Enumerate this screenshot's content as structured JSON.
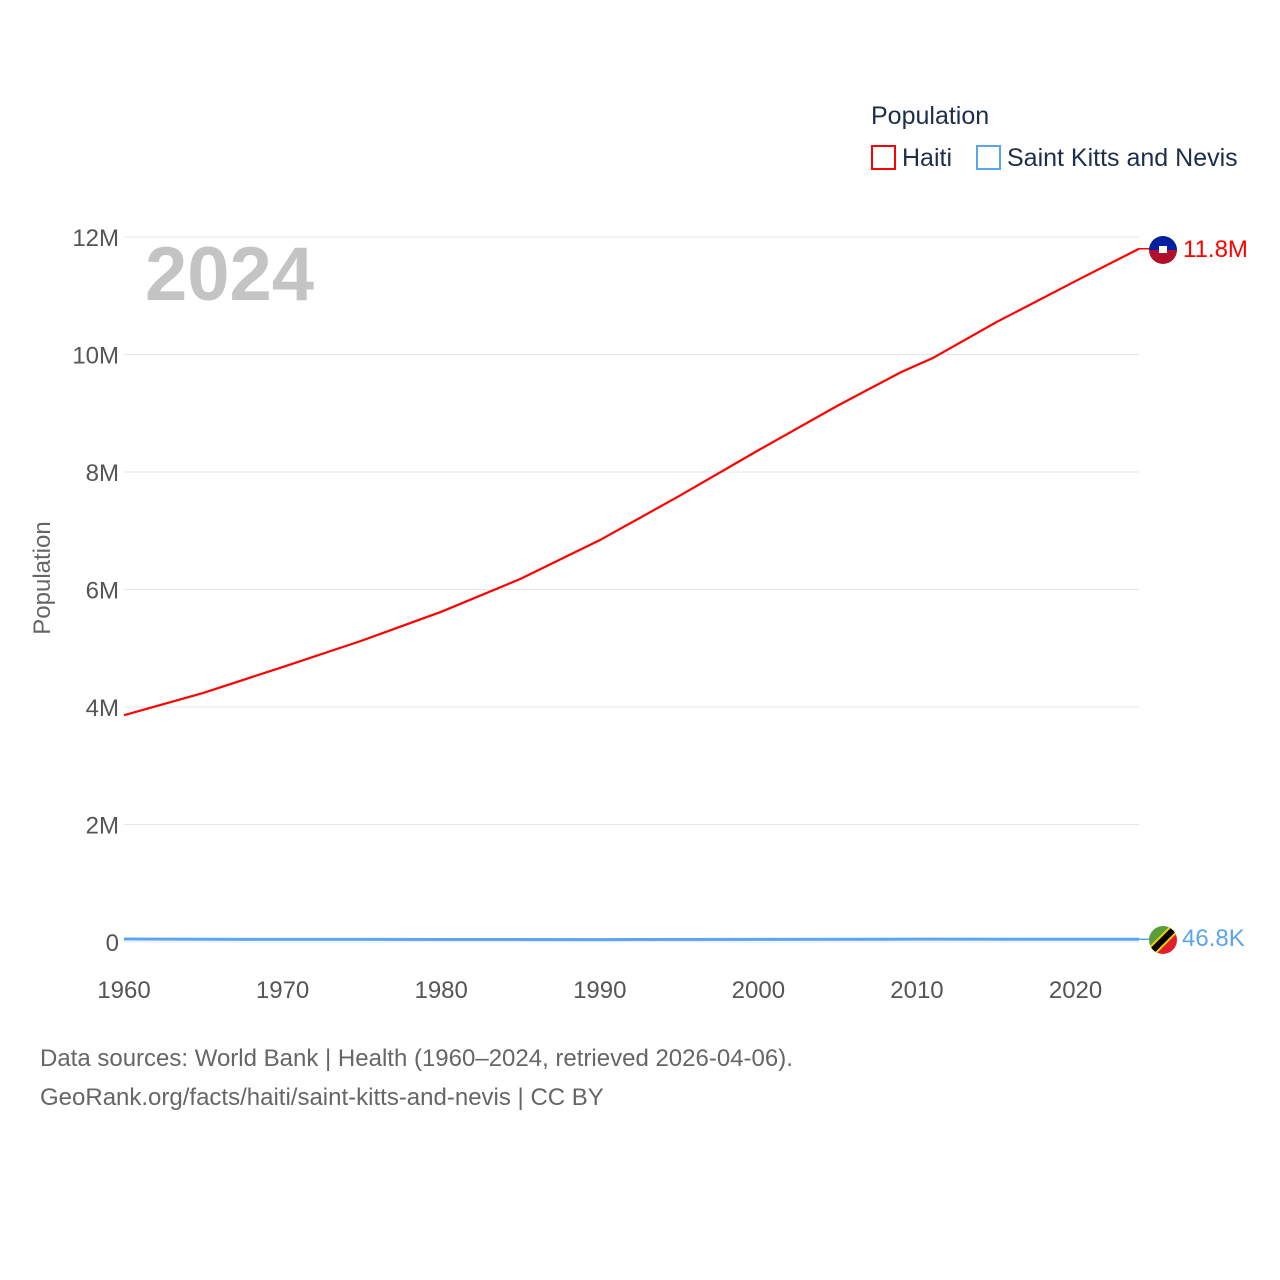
{
  "chart_data": {
    "type": "line",
    "title": "",
    "year_label": "2024",
    "xlabel": "",
    "ylabel": "Population",
    "xlim": [
      1960,
      2024
    ],
    "ylim": [
      0,
      12000000
    ],
    "x_ticks": [
      "1960",
      "1970",
      "1980",
      "1990",
      "2000",
      "2010",
      "2020"
    ],
    "y_ticks": [
      {
        "value": 0,
        "label": "0"
      },
      {
        "value": 2000000,
        "label": "2M"
      },
      {
        "value": 4000000,
        "label": "4M"
      },
      {
        "value": 6000000,
        "label": "6M"
      },
      {
        "value": 8000000,
        "label": "8M"
      },
      {
        "value": 10000000,
        "label": "10M"
      },
      {
        "value": 12000000,
        "label": "12M"
      }
    ],
    "grid": true,
    "legend": {
      "title": "Population",
      "placement": "top-right"
    },
    "series": [
      {
        "name": "Haiti",
        "color": "#ff0000",
        "end_label": "11.8M",
        "flag": "haiti-flag",
        "x": [
          1960,
          1965,
          1970,
          1975,
          1980,
          1985,
          1990,
          1995,
          2000,
          2005,
          2009,
          2011,
          2015,
          2020,
          2024
        ],
        "y": [
          3860000,
          4240000,
          4680000,
          5130000,
          5620000,
          6180000,
          6840000,
          7590000,
          8370000,
          9130000,
          9700000,
          9940000,
          10550000,
          11250000,
          11800000
        ]
      },
      {
        "name": "Saint Kitts and Nevis",
        "color": "#5aa5f0",
        "end_label": "46.8K",
        "flag": "saint-kitts-and-nevis-flag",
        "x": [
          1960,
          1965,
          1970,
          1980,
          1990,
          2000,
          2010,
          2020,
          2024
        ],
        "y": [
          51000,
          47000,
          45000,
          43000,
          41000,
          45000,
          48000,
          47500,
          46800
        ]
      }
    ]
  },
  "footer": {
    "line1": "Data sources: World Bank | Health (1960–2024, retrieved 2026-04-06).",
    "line2": "GeoRank.org/facts/haiti/saint-kitts-and-nevis | CC BY"
  }
}
